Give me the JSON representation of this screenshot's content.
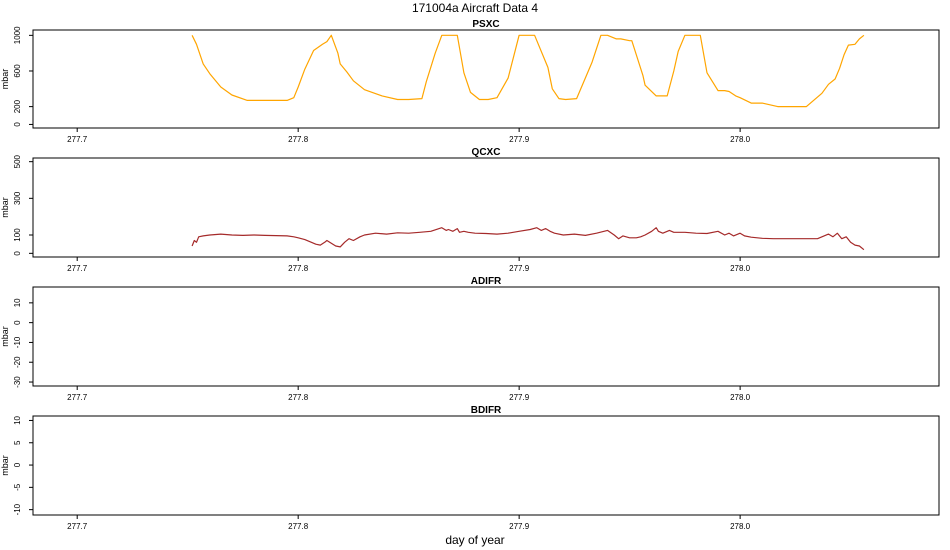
{
  "title": "171004a   Aircraft Data 4",
  "xlabel": "day of year",
  "chart_data": [
    {
      "type": "line",
      "title": "PSXC",
      "ylabel": "mbar",
      "xlim": [
        277.68,
        278.09
      ],
      "ylim": [
        -40,
        1060
      ],
      "xticks": [
        277.7,
        277.8,
        277.9,
        278.0
      ],
      "xtick_labels": [
        "277.7",
        "277.8",
        "277.9",
        "278.0"
      ],
      "yticks": [
        0,
        200,
        600,
        1000
      ],
      "ytick_labels": [
        "0",
        "200",
        "600",
        "1000"
      ],
      "series": [
        {
          "color": "#FFA500",
          "x": [
            277.752,
            277.754,
            277.757,
            277.76,
            277.765,
            277.77,
            277.777,
            277.785,
            277.795,
            277.798,
            277.8,
            277.803,
            277.807,
            277.811,
            277.813,
            277.815,
            277.818,
            277.819,
            277.822,
            277.825,
            277.83,
            277.838,
            277.845,
            277.85,
            277.856,
            277.858,
            277.862,
            277.865,
            277.867,
            277.872,
            277.875,
            277.878,
            277.882,
            277.886,
            277.89,
            277.895,
            277.9,
            277.903,
            277.907,
            277.913,
            277.915,
            277.918,
            277.921,
            277.926,
            277.933,
            277.937,
            277.94,
            277.944,
            277.946,
            277.95,
            277.951,
            277.956,
            277.957,
            277.962,
            277.964,
            277.967,
            277.97,
            277.972,
            277.975,
            277.982,
            277.985,
            277.99,
            277.993,
            277.995,
            277.998,
            278.0,
            278.005,
            278.01,
            278.017,
            278.02,
            278.025,
            278.03,
            278.037,
            278.04,
            278.043,
            278.045,
            278.047,
            278.049,
            278.052,
            278.054,
            278.056
          ],
          "y": [
            1000,
            900,
            680,
            570,
            420,
            330,
            270,
            270,
            270,
            300,
            420,
            620,
            830,
            900,
            930,
            1000,
            800,
            680,
            590,
            490,
            390,
            320,
            280,
            280,
            290,
            480,
            800,
            1000,
            1000,
            1000,
            580,
            360,
            280,
            280,
            300,
            520,
            1000,
            1000,
            1000,
            640,
            400,
            290,
            280,
            290,
            700,
            1000,
            1000,
            960,
            960,
            940,
            940,
            550,
            440,
            320,
            320,
            320,
            600,
            820,
            1000,
            1000,
            580,
            380,
            380,
            370,
            320,
            300,
            240,
            240,
            200,
            200,
            200,
            200,
            350,
            450,
            510,
            630,
            780,
            890,
            900,
            960,
            1000
          ]
        }
      ]
    },
    {
      "type": "line",
      "title": "QCXC",
      "ylabel": "mbar",
      "xlim": [
        277.68,
        278.09
      ],
      "ylim": [
        -20,
        520
      ],
      "xticks": [
        277.7,
        277.8,
        277.9,
        278.0
      ],
      "xtick_labels": [
        "277.7",
        "277.8",
        "277.9",
        "278.0"
      ],
      "yticks": [
        0,
        100,
        300,
        500
      ],
      "ytick_labels": [
        "0",
        "100",
        "300",
        "500"
      ],
      "series": [
        {
          "color": "#A52A2A",
          "x": [
            277.752,
            277.753,
            277.754,
            277.755,
            277.757,
            277.76,
            277.765,
            277.77,
            277.775,
            277.78,
            277.785,
            277.79,
            277.795,
            277.798,
            277.8,
            277.803,
            277.806,
            277.808,
            277.81,
            277.812,
            277.813,
            277.815,
            277.817,
            277.819,
            277.821,
            277.823,
            277.825,
            277.828,
            277.83,
            277.835,
            277.84,
            277.845,
            277.85,
            277.855,
            277.86,
            277.865,
            277.867,
            277.868,
            277.87,
            277.872,
            277.873,
            277.875,
            277.877,
            277.88,
            277.885,
            277.89,
            277.895,
            277.9,
            277.905,
            277.908,
            277.91,
            277.912,
            277.914,
            277.916,
            277.92,
            277.925,
            277.93,
            277.935,
            277.94,
            277.943,
            277.945,
            277.947,
            277.95,
            277.953,
            277.955,
            277.957,
            277.96,
            277.962,
            277.963,
            277.965,
            277.968,
            277.97,
            277.975,
            277.98,
            277.985,
            277.99,
            277.993,
            277.995,
            277.997,
            278.0,
            278.002,
            278.005,
            278.01,
            278.015,
            278.02,
            278.025,
            278.03,
            278.035,
            278.04,
            278.042,
            278.044,
            278.046,
            278.048,
            278.05,
            278.052,
            278.054,
            278.056
          ],
          "y": [
            40,
            70,
            60,
            90,
            95,
            100,
            105,
            100,
            98,
            100,
            98,
            97,
            95,
            90,
            85,
            75,
            60,
            50,
            45,
            60,
            70,
            55,
            40,
            35,
            60,
            80,
            70,
            90,
            100,
            110,
            105,
            112,
            110,
            115,
            120,
            140,
            125,
            130,
            120,
            135,
            115,
            120,
            115,
            110,
            108,
            105,
            110,
            120,
            130,
            140,
            125,
            135,
            120,
            110,
            100,
            105,
            98,
            110,
            125,
            100,
            80,
            95,
            85,
            85,
            90,
            100,
            120,
            140,
            120,
            110,
            125,
            115,
            115,
            110,
            108,
            120,
            100,
            110,
            95,
            110,
            95,
            88,
            82,
            80,
            80,
            80,
            80,
            80,
            105,
            90,
            110,
            80,
            90,
            60,
            45,
            40,
            20
          ]
        }
      ]
    },
    {
      "type": "line",
      "title": "ADIFR",
      "ylabel": "mbar",
      "xlim": [
        277.68,
        278.09
      ],
      "ylim": [
        -32,
        18
      ],
      "xticks": [
        277.7,
        277.8,
        277.9,
        278.0
      ],
      "xtick_labels": [
        "277.7",
        "277.8",
        "277.9",
        "278.0"
      ],
      "yticks": [
        -30,
        -20,
        -10,
        0,
        10
      ],
      "ytick_labels": [
        "-30",
        "-20",
        "-10",
        "0",
        "10"
      ],
      "series": []
    },
    {
      "type": "line",
      "title": "BDIFR",
      "ylabel": "mbar",
      "xlim": [
        277.68,
        278.09
      ],
      "ylim": [
        -11.2,
        11
      ],
      "xticks": [
        277.7,
        277.8,
        277.9,
        278.0
      ],
      "xtick_labels": [
        "277.7",
        "277.8",
        "277.9",
        "278.0"
      ],
      "yticks": [
        -10,
        -5,
        0,
        5,
        10
      ],
      "ytick_labels": [
        "-10",
        "-5",
        "0",
        "5",
        "10"
      ],
      "series": []
    }
  ]
}
